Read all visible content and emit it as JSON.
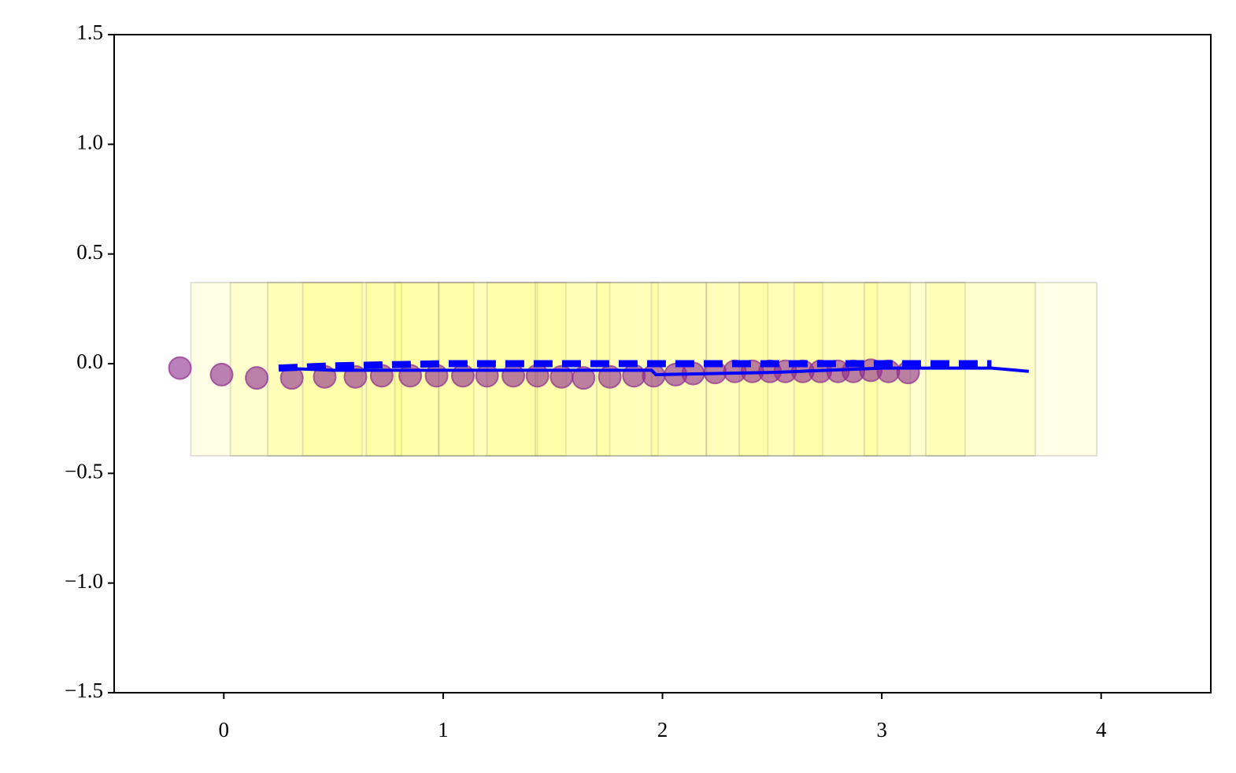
{
  "chart_data": {
    "type": "scatter",
    "xlim": [
      -0.5,
      4.5
    ],
    "ylim": [
      -1.5,
      1.5
    ],
    "xticks": [
      0,
      1,
      2,
      3,
      4
    ],
    "yticks": [
      1.5,
      {
        "value": 1,
        "label": "1.0"
      },
      0.5,
      {
        "value": 0,
        "label": "0.0"
      },
      {
        "value": -0.5,
        "label": "−0.5"
      },
      {
        "value": -1,
        "label": "−1.0"
      },
      {
        "value": -1.5,
        "label": "−1.5"
      }
    ],
    "footprints": {
      "color": "#ffff33",
      "y": [
        -0.42,
        0.37
      ],
      "x0": [
        -0.15,
        0.03,
        0.2,
        0.36,
        0.65,
        0.78,
        0.98,
        1.2,
        1.42,
        1.7,
        1.95,
        2.2,
        2.35,
        2.6,
        2.92,
        3.2
      ],
      "x1": [
        0.63,
        0.81,
        0.98,
        1.14,
        1.43,
        1.56,
        1.76,
        1.98,
        2.2,
        2.48,
        2.73,
        2.98,
        3.13,
        3.38,
        3.7,
        3.98
      ]
    },
    "points": {
      "color": "#8e2c8e",
      "x": [
        -0.2,
        -0.01,
        0.15,
        0.31,
        0.46,
        0.6,
        0.72,
        0.85,
        0.97,
        1.09,
        1.2,
        1.32,
        1.43,
        1.54,
        1.64,
        1.76,
        1.87,
        1.96,
        2.06,
        2.14,
        2.24,
        2.33,
        2.41,
        2.49,
        2.56,
        2.64,
        2.72,
        2.8,
        2.87,
        2.95,
        3.03,
        3.12
      ],
      "y": [
        -0.02,
        -0.05,
        -0.065,
        -0.065,
        -0.06,
        -0.06,
        -0.055,
        -0.055,
        -0.055,
        -0.055,
        -0.055,
        -0.055,
        -0.055,
        -0.06,
        -0.065,
        -0.06,
        -0.055,
        -0.055,
        -0.05,
        -0.045,
        -0.04,
        -0.035,
        -0.035,
        -0.035,
        -0.035,
        -0.035,
        -0.035,
        -0.035,
        -0.035,
        -0.03,
        -0.035,
        -0.04
      ]
    },
    "lines": [
      {
        "color": "#0000ff",
        "style": "solid",
        "x": [
          0.25,
          0.5,
          1.0,
          1.5,
          1.95,
          1.97,
          2.5,
          3.0,
          3.5,
          3.67
        ],
        "y": [
          -0.02,
          -0.03,
          -0.03,
          -0.03,
          -0.03,
          -0.05,
          -0.04,
          -0.02,
          -0.02,
          -0.035
        ]
      },
      {
        "color": "#0000ff",
        "style": "dashed",
        "x": [
          0.25,
          0.5,
          1.0,
          2.0,
          3.0,
          3.5
        ],
        "y": [
          -0.02,
          -0.01,
          0.0,
          0.0,
          0.0,
          0.0
        ]
      }
    ]
  }
}
